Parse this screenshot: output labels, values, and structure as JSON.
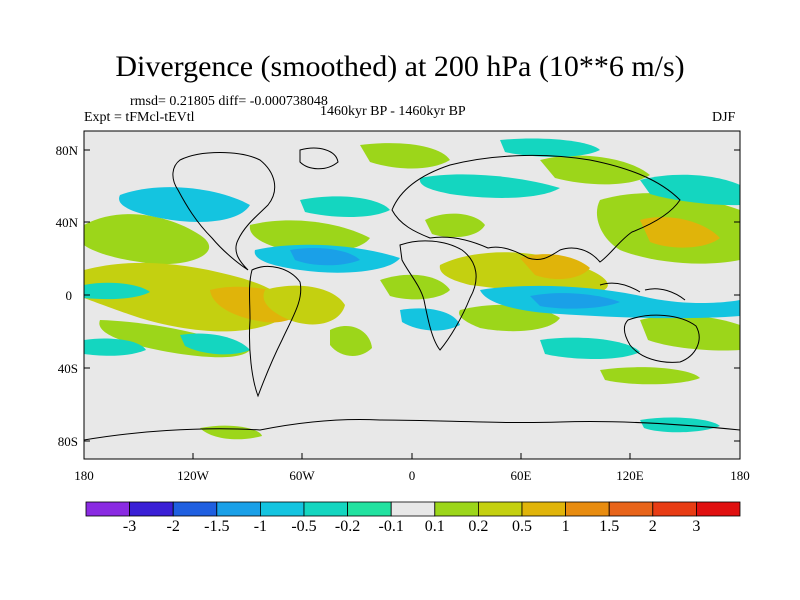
{
  "header": {
    "title": "Divergence (smoothed) at 200 hPa (10**6 m/s)",
    "stats": "rmsd= 0.21805 diff= -0.000738048",
    "expt": "Expt = tFMcl-tEVtl",
    "period": "1460kyr BP - 1460kyr BP",
    "season": "DJF"
  },
  "axes": {
    "lat_ticks": [
      "80N",
      "40N",
      "0",
      "40S",
      "80S"
    ],
    "lon_ticks": [
      "180",
      "120W",
      "60W",
      "0",
      "60E",
      "120E",
      "180"
    ]
  },
  "colorbar": {
    "labels": [
      "-3",
      "-2",
      "-1.5",
      "-1",
      "-0.5",
      "-0.2",
      "-0.1",
      "0.1",
      "0.2",
      "0.5",
      "1",
      "1.5",
      "2",
      "3"
    ],
    "colors": [
      "#8a2be2",
      "#3a1fd6",
      "#1f5fe0",
      "#1aa0e8",
      "#14c4e0",
      "#14d6c0",
      "#22e2a0",
      "#e8e8e8",
      "#9cd61a",
      "#c4d010",
      "#e0b40a",
      "#e88c10",
      "#e8641a",
      "#e83c14",
      "#e01010"
    ]
  },
  "palette": {
    "background": "#e8e8e8",
    "coast": "#000000"
  }
}
